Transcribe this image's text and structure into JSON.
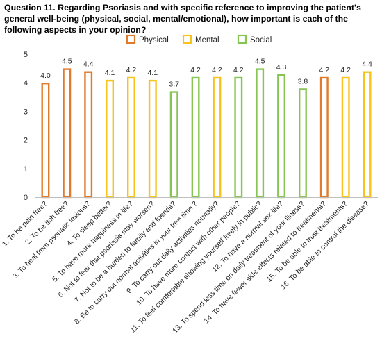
{
  "chart_data": {
    "type": "bar",
    "title": "Question 11. Regarding Psoriasis and with specific reference to improving the patient's general well-being (physical, social, mental/emotional), how important is each of the following aspects in your opinion?",
    "ylim": [
      0,
      5
    ],
    "yticks": [
      "0",
      "1",
      "2",
      "3",
      "4",
      "5"
    ],
    "grid": false,
    "legend_position": "top",
    "series_colors": {
      "Physical": "#e07b2c",
      "Mental": "#f7c31c",
      "Social": "#86c553"
    },
    "legend": [
      {
        "name": "Physical",
        "color": "#e07b2c"
      },
      {
        "name": "Mental",
        "color": "#f7c31c"
      },
      {
        "name": "Social",
        "color": "#86c553"
      }
    ],
    "categories": [
      "1. To be pain free?",
      "2. To be itch free?",
      "3. To heal from psoriatic lesions?",
      "4. To sleep better?",
      "5. To have more happiness in life?",
      "6. Not to fear that psoriasis may worsen?",
      "7. Not to be a burden to family and friends?",
      "8. Be to carry out normal activities in your free time ?",
      "9. To carry out daily activities normally?",
      "10. To have more contact with other people?",
      "11. To feel comfortable showing yourself freely in public?",
      "12. To have a normal sex life?",
      "13. To spend less time on daily treatment of your illness?",
      "14. To have fewer side effects related to treatments?",
      "15. To be able to trust treatments?",
      "16. To be able to control the disease?"
    ],
    "values": [
      4.0,
      4.5,
      4.4,
      4.1,
      4.2,
      4.1,
      3.7,
      4.2,
      4.2,
      4.2,
      4.5,
      4.3,
      3.8,
      4.2,
      4.2,
      4.4
    ],
    "value_labels": [
      "4.0",
      "4.5",
      "4.4",
      "4.1",
      "4.2",
      "4.1",
      "3.7",
      "4.2",
      "4.2",
      "4.2",
      "4.5",
      "4.3",
      "3.8",
      "4.2",
      "4.2",
      "4.4"
    ],
    "bar_groups": [
      "Physical",
      "Physical",
      "Physical",
      "Mental",
      "Mental",
      "Mental",
      "Social",
      "Social",
      "Mental",
      "Social",
      "Social",
      "Social",
      "Social",
      "Physical",
      "Mental",
      "Mental"
    ]
  }
}
